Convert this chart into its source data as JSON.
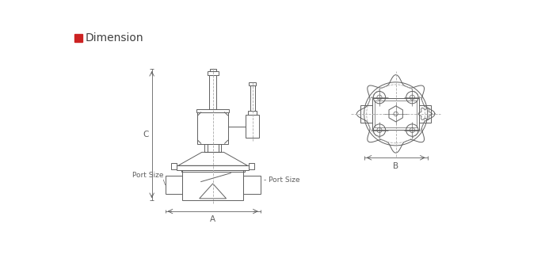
{
  "title": "Dimension",
  "title_color": "#404040",
  "red_square_color": "#cc2222",
  "line_color": "#606060",
  "dashed_line_color": "#aaaaaa",
  "bg_color": "#ffffff",
  "label_A": "A",
  "label_B": "B",
  "label_C": "C",
  "label_port_size_left": "Port Size",
  "label_port_size_right": "Port Size"
}
